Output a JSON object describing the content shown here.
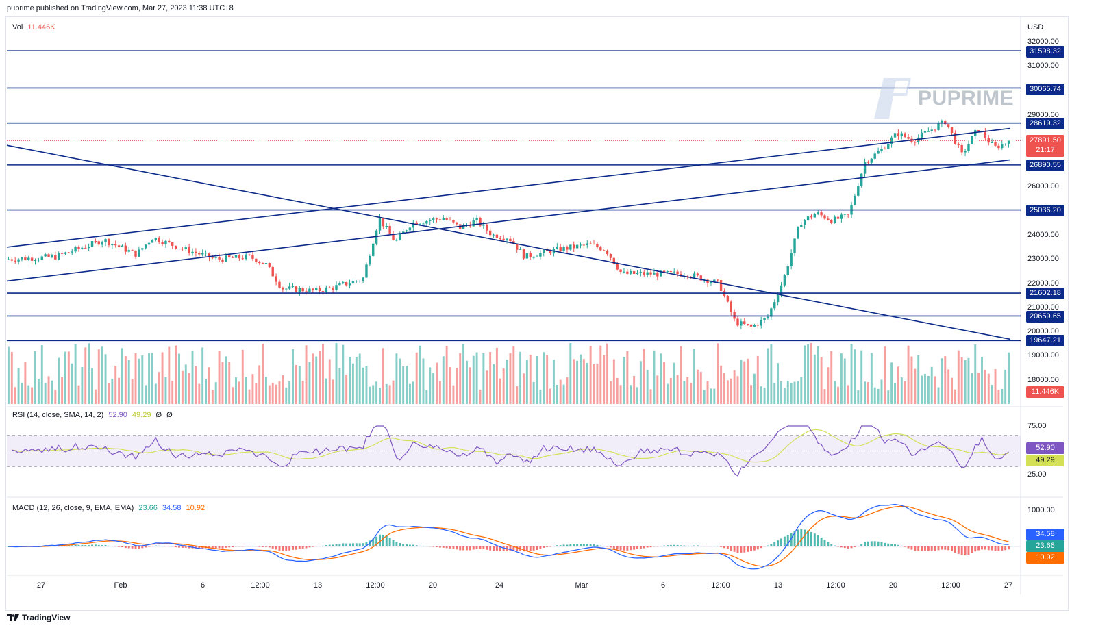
{
  "header": {
    "published": "puprime published on TradingView.com, Mar 27, 2023 11:38 UTC+8"
  },
  "footer": {
    "brand": "TradingView",
    "logo_icon": "tradingview-logo-icon"
  },
  "watermark": {
    "text": "PUPRIME",
    "icon": "puprime-logo-icon"
  },
  "colors": {
    "up": "#26a69a",
    "down": "#ef5350",
    "line": "#0c2a8a",
    "rsi": "#7e57c2",
    "rsi_ma": "#d4e157",
    "macd": "#2962ff",
    "signal": "#ff6d00"
  },
  "price_pane": {
    "currency": "USD",
    "vol_label": "Vol",
    "vol_value": "11.446K",
    "current_price": "27891.50",
    "countdown": "21:17",
    "vol_tag": "11.446K",
    "levels": [
      "31598.32",
      "30065.74",
      "28619.32",
      "26890.55",
      "25036.20",
      "21602.18",
      "20659.65",
      "19647.21"
    ],
    "axis_ticks": [
      "32000.00",
      "31000.00",
      "29000.00",
      "26000.00",
      "24000.00",
      "23000.00",
      "22000.00",
      "21000.00",
      "20000.00",
      "19000.00",
      "18000.00"
    ]
  },
  "rsi_pane": {
    "label": "RSI (14, close, SMA, 14, 2)",
    "rsi_value": "52.90",
    "ma_value": "49.29",
    "extra": [
      "Ø",
      "Ø"
    ],
    "axis_ticks": [
      "75.00",
      "25.00"
    ],
    "tag_rsi": "52.90",
    "tag_ma": "49.29"
  },
  "macd_pane": {
    "label": "MACD (12, 26, close, 9, EMA, EMA)",
    "hist_value": "23.66",
    "macd_value": "34.58",
    "signal_value": "10.92",
    "axis_ticks": [
      "1000.00"
    ],
    "tag_macd": "34.58",
    "tag_hist": "23.66",
    "tag_signal": "10.92"
  },
  "x_axis": [
    "27",
    "Feb",
    "6",
    "12:00",
    "13",
    "12:00",
    "20",
    "24",
    "Mar",
    "6",
    "12:00",
    "13",
    "12:00",
    "20",
    "12:00",
    "27"
  ],
  "chart_data": {
    "type": "candlestick",
    "symbol_currency": "USD",
    "y_axis_price": [
      18000,
      32000
    ],
    "horizontal_levels": [
      31598.32,
      30065.74,
      28619.32,
      26890.55,
      25036.2,
      21602.18,
      20659.65,
      19647.21
    ],
    "trendlines": [
      {
        "name": "descending",
        "from": [
          "Jan 24",
          27700
        ],
        "to": [
          "Mar 27",
          19700
        ]
      },
      {
        "name": "channel-upper",
        "from": [
          "Jan 24",
          23500
        ],
        "to": [
          "Mar 27",
          28400
        ]
      },
      {
        "name": "channel-lower",
        "from": [
          "Jan 24",
          22100
        ],
        "to": [
          "Mar 27",
          27100
        ]
      }
    ],
    "close_path": [
      [
        "Jan 24",
        23000
      ],
      [
        "Jan 27",
        23100
      ],
      [
        "Jan 30",
        23800
      ],
      [
        "Feb 1",
        23200
      ],
      [
        "Feb 2",
        23900
      ],
      [
        "Feb 4",
        23400
      ],
      [
        "Feb 6",
        23000
      ],
      [
        "Feb 8",
        23100
      ],
      [
        "Feb 9",
        22800
      ],
      [
        "Feb 10",
        21800
      ],
      [
        "Feb 12",
        21700
      ],
      [
        "Feb 13",
        21800
      ],
      [
        "Feb 15",
        22200
      ],
      [
        "Feb 16",
        24700
      ],
      [
        "Feb 17",
        23700
      ],
      [
        "Feb 18",
        24500
      ],
      [
        "Feb 20",
        24700
      ],
      [
        "Feb 21",
        24300
      ],
      [
        "Feb 22",
        24600
      ],
      [
        "Feb 23",
        24000
      ],
      [
        "Feb 24",
        23900
      ],
      [
        "Feb 25",
        23100
      ],
      [
        "Feb 27",
        23400
      ],
      [
        "Feb 28",
        23500
      ],
      [
        "Mar 1",
        23600
      ],
      [
        "Mar 2",
        23400
      ],
      [
        "Mar 3",
        22400
      ],
      [
        "Mar 5",
        22400
      ],
      [
        "Mar 7",
        22400
      ],
      [
        "Mar 9",
        22000
      ],
      [
        "Mar 10",
        20400
      ],
      [
        "Mar 11",
        20200
      ],
      [
        "Mar 12",
        20600
      ],
      [
        "Mar 13",
        22200
      ],
      [
        "Mar 14",
        24500
      ],
      [
        "Mar 15",
        24900
      ],
      [
        "Mar 16",
        24600
      ],
      [
        "Mar 17",
        24800
      ],
      [
        "Mar 18",
        27000
      ],
      [
        "Mar 19",
        27500
      ],
      [
        "Mar 20",
        28200
      ],
      [
        "Mar 21",
        27900
      ],
      [
        "Mar 22",
        28300
      ],
      [
        "Mar 23",
        28700
      ],
      [
        "Mar 24",
        27300
      ],
      [
        "Mar 25",
        28400
      ],
      [
        "Mar 26",
        27600
      ],
      [
        "Mar 27",
        27891.5
      ]
    ],
    "rsi_last": 52.9,
    "rsi_ma_last": 49.29,
    "macd_last": 34.58,
    "signal_last": 10.92,
    "histogram_last": 23.66
  }
}
